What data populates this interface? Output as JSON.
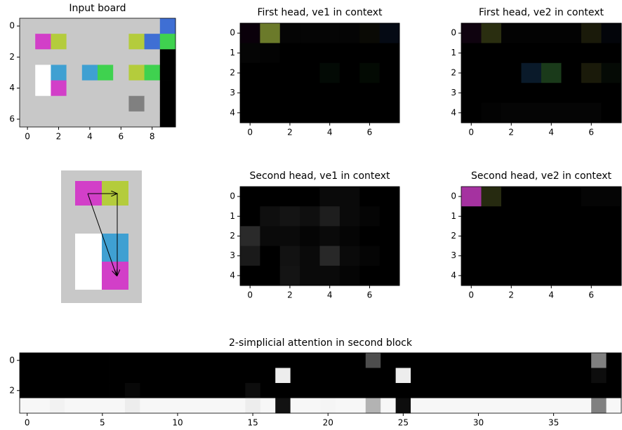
{
  "chart_data": [
    {
      "type": "heatmap",
      "title": "Input board",
      "xticks": [
        0,
        2,
        4,
        6,
        8
      ],
      "yticks": [
        0,
        2,
        4,
        6
      ],
      "cells": [
        [
          "#c8c8c8",
          "#c8c8c8",
          "#c8c8c8",
          "#c8c8c8",
          "#c8c8c8",
          "#c8c8c8",
          "#c8c8c8",
          "#c8c8c8",
          "#c8c8c8",
          "#3f6fd4"
        ],
        [
          "#c8c8c8",
          "#d23fc8",
          "#b4cc3c",
          "#c8c8c8",
          "#c8c8c8",
          "#c8c8c8",
          "#c8c8c8",
          "#b4cc3c",
          "#3f6fd4",
          "#3fd24f"
        ],
        [
          "#c8c8c8",
          "#c8c8c8",
          "#c8c8c8",
          "#c8c8c8",
          "#c8c8c8",
          "#c8c8c8",
          "#c8c8c8",
          "#c8c8c8",
          "#c8c8c8",
          "#000000"
        ],
        [
          "#c8c8c8",
          "#ffffff",
          "#3fa0d2",
          "#c8c8c8",
          "#3fa0d2",
          "#3fd24f",
          "#c8c8c8",
          "#b4cc3c",
          "#3fd24f",
          "#000000"
        ],
        [
          "#c8c8c8",
          "#ffffff",
          "#d23fc8",
          "#c8c8c8",
          "#c8c8c8",
          "#c8c8c8",
          "#c8c8c8",
          "#c8c8c8",
          "#c8c8c8",
          "#000000"
        ],
        [
          "#c8c8c8",
          "#c8c8c8",
          "#c8c8c8",
          "#c8c8c8",
          "#c8c8c8",
          "#c8c8c8",
          "#c8c8c8",
          "#808080",
          "#c8c8c8",
          "#000000"
        ],
        [
          "#c8c8c8",
          "#c8c8c8",
          "#c8c8c8",
          "#c8c8c8",
          "#c8c8c8",
          "#c8c8c8",
          "#c8c8c8",
          "#c8c8c8",
          "#c8c8c8",
          "#000000"
        ]
      ]
    },
    {
      "type": "heatmap",
      "title": "First head, ve1 in context",
      "xticks": [
        0,
        2,
        4,
        6
      ],
      "yticks": [
        0,
        1,
        2,
        3,
        4
      ],
      "cells": [
        [
          "#0a000a",
          "#6b7a2a",
          "#050505",
          "#050505",
          "#050505",
          "#050505",
          "#0a0a05",
          "#050a14"
        ],
        [
          "#050505",
          "#030303",
          "#000000",
          "#000000",
          "#000000",
          "#000000",
          "#000000",
          "#000000"
        ],
        [
          "#000000",
          "#000000",
          "#000000",
          "#000000",
          "#030a05",
          "#000000",
          "#030a03",
          "#000000"
        ],
        [
          "#000000",
          "#000000",
          "#000000",
          "#000000",
          "#000000",
          "#000000",
          "#000000",
          "#000000"
        ],
        [
          "#000000",
          "#000000",
          "#000000",
          "#000000",
          "#000000",
          "#000000",
          "#000000",
          "#000000"
        ]
      ]
    },
    {
      "type": "heatmap",
      "title": "First head, ve2 in context",
      "xticks": [
        0,
        2,
        4,
        6
      ],
      "yticks": [
        0,
        1,
        2,
        3,
        4
      ],
      "cells": [
        [
          "#0f030f",
          "#2a2e10",
          "#030303",
          "#030303",
          "#030303",
          "#030303",
          "#1a1a0a",
          "#03050a"
        ],
        [
          "#000000",
          "#000000",
          "#000000",
          "#000000",
          "#000000",
          "#000000",
          "#000000",
          "#000000"
        ],
        [
          "#000000",
          "#000000",
          "#000000",
          "#0a1a2a",
          "#1a3a1a",
          "#000000",
          "#1a1a0a",
          "#050a05"
        ],
        [
          "#000000",
          "#000000",
          "#000000",
          "#000000",
          "#000000",
          "#000000",
          "#000000",
          "#000000"
        ],
        [
          "#000000",
          "#030303",
          "#050505",
          "#050505",
          "#050505",
          "#050505",
          "#050505",
          "#000000"
        ]
      ]
    },
    {
      "type": "heatmap",
      "title": "Second head, ve1 in context",
      "xticks": [
        0,
        2,
        4,
        6
      ],
      "yticks": [
        0,
        1,
        2,
        3,
        4
      ],
      "cells": [
        [
          "#000000",
          "#000000",
          "#000000",
          "#000000",
          "#0a0a0a",
          "#0a0a0a",
          "#000000",
          "#000000"
        ],
        [
          "#000000",
          "#0f0f0f",
          "#141414",
          "#0f0f0f",
          "#1e1e1e",
          "#0a0a0a",
          "#050505",
          "#000000"
        ],
        [
          "#2a2a2a",
          "#0a0a0a",
          "#0a0a0a",
          "#050505",
          "#0a0a0a",
          "#050505",
          "#000000",
          "#000000"
        ],
        [
          "#1a1a1a",
          "#000000",
          "#121212",
          "#0a0a0a",
          "#282828",
          "#0a0a0a",
          "#050505",
          "#000000"
        ],
        [
          "#000000",
          "#000000",
          "#141414",
          "#0a0a0a",
          "#0a0a0a",
          "#050505",
          "#000000",
          "#000000"
        ]
      ]
    },
    {
      "type": "heatmap",
      "title": "Second head, ve2 in context",
      "xticks": [
        0,
        2,
        4,
        6
      ],
      "yticks": [
        0,
        1,
        2,
        3,
        4
      ],
      "cells": [
        [
          "#a532a0",
          "#262a10",
          "#000000",
          "#000000",
          "#000000",
          "#000000",
          "#050505",
          "#050505"
        ],
        [
          "#000000",
          "#000000",
          "#000000",
          "#000000",
          "#000000",
          "#000000",
          "#000000",
          "#000000"
        ],
        [
          "#000000",
          "#000000",
          "#000000",
          "#000000",
          "#000000",
          "#000000",
          "#000000",
          "#000000"
        ],
        [
          "#000000",
          "#000000",
          "#000000",
          "#000000",
          "#000000",
          "#000000",
          "#000000",
          "#000000"
        ],
        [
          "#000000",
          "#000000",
          "#000000",
          "#000000",
          "#000000",
          "#000000",
          "#000000",
          "#000000"
        ]
      ]
    },
    {
      "type": "heatmap",
      "title": "2-simplicial attention in second block",
      "xticks": [
        0,
        5,
        10,
        15,
        20,
        25,
        30,
        35
      ],
      "yticks": [
        0,
        2
      ],
      "colormap": "gray",
      "clim": [
        0,
        1
      ],
      "values": [
        [
          0,
          0,
          0,
          0,
          0,
          0,
          0,
          0,
          0,
          0,
          0,
          0,
          0,
          0,
          0,
          0,
          0,
          0,
          0,
          0,
          0,
          0,
          0,
          0.3,
          0,
          0,
          0,
          0,
          0,
          0,
          0,
          0,
          0,
          0,
          0,
          0,
          0,
          0,
          0.5,
          0
        ],
        [
          0,
          0,
          0,
          0,
          0,
          0,
          0,
          0,
          0,
          0,
          0,
          0,
          0,
          0,
          0,
          0,
          0,
          0.93,
          0,
          0,
          0,
          0,
          0,
          0,
          0,
          0.93,
          0,
          0,
          0,
          0,
          0,
          0,
          0,
          0,
          0,
          0,
          0,
          0,
          0.05,
          0
        ],
        [
          0,
          0,
          0,
          0,
          0,
          0,
          0,
          0.03,
          0,
          0,
          0,
          0,
          0,
          0,
          0,
          0.05,
          0,
          0,
          0,
          0,
          0,
          0,
          0,
          0,
          0,
          0,
          0,
          0,
          0,
          0,
          0,
          0,
          0,
          0,
          0,
          0,
          0,
          0,
          0,
          0
        ],
        [
          0.97,
          0.97,
          0.95,
          0.97,
          0.97,
          0.97,
          0.97,
          0.93,
          0.97,
          0.97,
          0.97,
          0.97,
          0.97,
          0.97,
          0.97,
          0.93,
          0.97,
          0.07,
          0.97,
          0.97,
          0.96,
          0.97,
          0.97,
          0.7,
          0.97,
          0.05,
          0.97,
          0.97,
          0.97,
          0.97,
          0.97,
          0.97,
          0.97,
          0.97,
          0.97,
          0.97,
          0.97,
          0.97,
          0.5,
          0.97
        ]
      ]
    }
  ]
}
